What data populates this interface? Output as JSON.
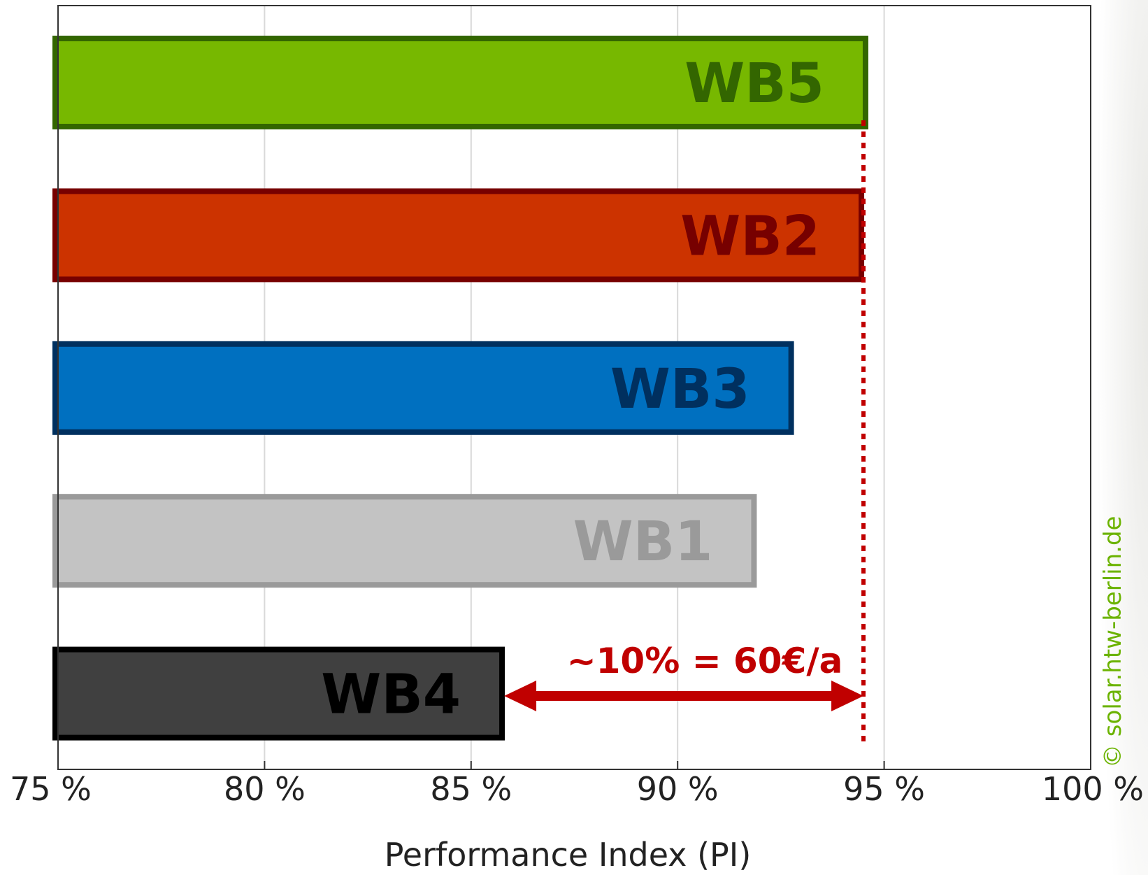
{
  "chart_data": {
    "type": "bar",
    "orientation": "horizontal",
    "categories": [
      "WB5",
      "WB2",
      "WB3",
      "WB1",
      "WB4"
    ],
    "values": [
      94.6,
      94.5,
      92.8,
      91.9,
      85.8
    ],
    "xlabel": "Performance Index (PI)",
    "xlim": [
      75,
      100
    ],
    "xticks": [
      75,
      80,
      85,
      90,
      95,
      100
    ],
    "tick_suffix": " %",
    "grid": "vertical",
    "colors": {
      "WB5": {
        "fill": "#77b800",
        "stroke": "#336600"
      },
      "WB2": {
        "fill": "#cc3300",
        "stroke": "#770000"
      },
      "WB3": {
        "fill": "#0070c0",
        "stroke": "#00305f"
      },
      "WB1": {
        "fill": "#c3c3c3",
        "stroke": "#9a9a9a"
      },
      "WB4": {
        "fill": "#404040",
        "stroke": "#000000"
      }
    },
    "reference_line": {
      "x": 94.5,
      "color": "#c00000",
      "style": "dotted"
    },
    "annotation": {
      "text": "~10% = 60€/a",
      "from": 85.8,
      "to": 94.5,
      "color": "#c00000"
    }
  },
  "copyright": "© solar.htw-berlin.de"
}
